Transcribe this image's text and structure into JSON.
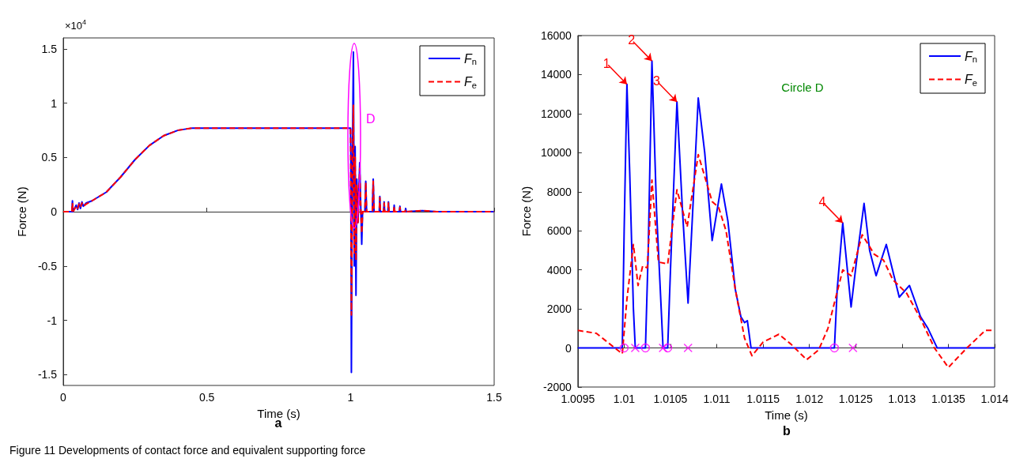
{
  "chart_data": [
    {
      "type": "line",
      "xlabel": "Time (s)",
      "ylabel": "Force (N)",
      "xlim": [
        0,
        1.5
      ],
      "xticks": [
        0,
        0.5,
        1,
        1.5
      ],
      "ylim": [
        -1.6,
        1.6
      ],
      "yticks": [
        -1.5,
        -1,
        -0.5,
        0,
        0.5,
        1,
        1.5
      ],
      "legend": "top right",
      "marker": "none",
      "annotations": [
        "×10$^{4}$",
        "D",
        "a",
        "Figure 11 Developments of contact force and equivalent supporting force"
      ],
      "series": [
        {
          "name": "F$_{n}$",
          "color": "#0000ff",
          "line_style": "solid",
          "x": [
            0,
            0.03,
            0.032,
            0.034,
            0.045,
            0.05,
            0.055,
            0.06,
            0.065,
            0.07,
            0.08,
            0.1,
            0.15,
            0.2,
            0.25,
            0.3,
            0.35,
            0.4,
            0.45,
            0.5,
            0.6,
            0.7,
            0.8,
            0.9,
            1.0,
            1.001,
            1.003,
            1.006,
            1.01,
            1.013,
            1.016,
            1.019,
            1.022,
            1.026,
            1.032,
            1.036,
            1.039,
            1.042,
            1.05,
            1.053,
            1.056,
            1.076,
            1.079,
            1.082,
            1.1,
            1.102,
            1.104,
            1.115,
            1.117,
            1.119,
            1.13,
            1.132,
            1.134,
            1.15,
            1.152,
            1.154,
            1.17,
            1.172,
            1.174,
            1.19,
            1.192,
            1.194,
            1.25,
            1.3,
            1.5
          ],
          "values": [
            0,
            0,
            0.1,
            0,
            0.06,
            0.02,
            0.08,
            0.03,
            0.09,
            0.05,
            0.08,
            0.1,
            0.18,
            0.32,
            0.48,
            0.61,
            0.7,
            0.75,
            0.77,
            0.77,
            0.77,
            0.77,
            0.77,
            0.77,
            0.77,
            0.5,
            -1.48,
            0.3,
            1.47,
            -0.5,
            0.6,
            -0.77,
            0.3,
            -0.1,
            0.45,
            0,
            -0.3,
            0,
            0,
            0.28,
            0,
            0,
            0.3,
            0,
            0,
            0.14,
            0,
            0,
            0.09,
            0,
            0,
            0.09,
            0,
            0,
            0.06,
            0,
            0,
            0.05,
            0,
            0,
            0.03,
            0,
            0.01,
            0,
            0
          ]
        },
        {
          "name": "F$_{e}$",
          "color": "#ff0000",
          "line_style": "dashed",
          "x": [
            0,
            0.03,
            0.032,
            0.034,
            0.045,
            0.05,
            0.055,
            0.06,
            0.065,
            0.07,
            0.08,
            0.1,
            0.15,
            0.2,
            0.25,
            0.3,
            0.35,
            0.4,
            0.45,
            0.5,
            0.6,
            0.7,
            0.8,
            0.9,
            1.0,
            1.001,
            1.003,
            1.006,
            1.01,
            1.013,
            1.016,
            1.019,
            1.022,
            1.026,
            1.032,
            1.036,
            1.039,
            1.042,
            1.05,
            1.053,
            1.056,
            1.076,
            1.079,
            1.082,
            1.1,
            1.102,
            1.104,
            1.115,
            1.117,
            1.119,
            1.13,
            1.132,
            1.134,
            1.15,
            1.152,
            1.154,
            1.17,
            1.172,
            1.174,
            1.19,
            1.192,
            1.194,
            1.25,
            1.3,
            1.5
          ],
          "values": [
            0,
            0,
            0.08,
            0,
            0.05,
            0.03,
            0.07,
            0.04,
            0.08,
            0.05,
            0.07,
            0.1,
            0.18,
            0.32,
            0.48,
            0.61,
            0.7,
            0.75,
            0.77,
            0.77,
            0.77,
            0.77,
            0.77,
            0.77,
            0.77,
            0.45,
            -0.95,
            0.2,
            0.98,
            -0.4,
            0.5,
            -0.45,
            0.25,
            -0.1,
            0.4,
            0,
            -0.2,
            0,
            0,
            0.27,
            0,
            0,
            0.28,
            0,
            0,
            0.13,
            0,
            0,
            0.08,
            0,
            0,
            0.08,
            0,
            0,
            0.05,
            0,
            0,
            0.04,
            0,
            0,
            0.02,
            0,
            0.01,
            0,
            0
          ]
        }
      ]
    },
    {
      "type": "line",
      "xlabel": "Time (s)",
      "ylabel": "Force (N)",
      "xlim": [
        1.0095,
        1.014
      ],
      "xticks": [
        1.0095,
        1.01,
        1.0105,
        1.011,
        1.0115,
        1.012,
        1.0125,
        1.013,
        1.0135,
        1.014
      ],
      "ylim": [
        -2000,
        16000
      ],
      "yticks": [
        -2000,
        0,
        2000,
        4000,
        6000,
        8000,
        10000,
        12000,
        14000,
        16000
      ],
      "legend": "top right",
      "marker": "none",
      "annotations": [
        "Circle D",
        "b",
        {
          "text": "1",
          "x": 1.01003,
          "y": 13500
        },
        {
          "text": "2",
          "x": 1.0103,
          "y": 14700
        },
        {
          "text": "3",
          "x": 1.01057,
          "y": 12600
        },
        {
          "text": "4",
          "x": 1.01236,
          "y": 6400
        }
      ],
      "series": [
        {
          "name": "F$_{n}$",
          "color": "#0000ff",
          "line_style": "solid",
          "x": [
            1.0095,
            1.00998,
            1.01,
            1.01003,
            1.01006,
            1.0101,
            1.01012,
            1.01023,
            1.01026,
            1.0103,
            1.01035,
            1.01042,
            1.01047,
            1.0105,
            1.01057,
            1.01063,
            1.01069,
            1.01074,
            1.0108,
            1.01087,
            1.01095,
            1.01105,
            1.01112,
            1.0112,
            1.01126,
            1.0113,
            1.01133,
            1.01137,
            1.01227,
            1.0123,
            1.01236,
            1.01241,
            1.01245,
            1.01251,
            1.01259,
            1.01265,
            1.01272,
            1.01283,
            1.01297,
            1.01308,
            1.0132,
            1.01328,
            1.01338,
            1.014
          ],
          "values": [
            0,
            0,
            6000,
            13500,
            9000,
            2000,
            0,
            0,
            5000,
            14700,
            7000,
            0,
            0,
            4000,
            12600,
            7000,
            2300,
            7000,
            12800,
            10000,
            5500,
            8400,
            6500,
            3000,
            1600,
            1300,
            1400,
            0,
            0,
            3000,
            6400,
            4000,
            2100,
            4500,
            7400,
            5000,
            3700,
            5300,
            2600,
            3200,
            1600,
            1000,
            0,
            0
          ]
        },
        {
          "name": "F$_{e}$",
          "color": "#ff0000",
          "line_style": "dashed",
          "x": [
            1.0095,
            1.0097,
            1.0099,
            1.00998,
            1.01003,
            1.0101,
            1.01015,
            1.0102,
            1.01025,
            1.0103,
            1.01037,
            1.01047,
            1.01057,
            1.01068,
            1.0108,
            1.01095,
            1.01102,
            1.0111,
            1.0112,
            1.0113,
            1.01138,
            1.0115,
            1.01167,
            1.0118,
            1.01197,
            1.0121,
            1.0122,
            1.01228,
            1.01236,
            1.01245,
            1.01257,
            1.0127,
            1.0128,
            1.0129,
            1.01305,
            1.0132,
            1.01335,
            1.0135,
            1.0137,
            1.0139,
            1.014
          ],
          "values": [
            900,
            750,
            0,
            -300,
            2500,
            5300,
            3200,
            4200,
            4100,
            8600,
            4400,
            4300,
            8100,
            6200,
            9900,
            7500,
            7200,
            6000,
            3000,
            500,
            -400,
            300,
            700,
            200,
            -600,
            -100,
            1000,
            2500,
            4000,
            3700,
            5800,
            4800,
            4500,
            3500,
            2800,
            1500,
            0,
            -1000,
            0,
            900,
            900
          ]
        },
        {
          "type": "scatter",
          "marker": "circle",
          "color": "#ff00ff",
          "x": [
            1.01,
            1.01023,
            1.01047,
            1.01227
          ],
          "values": [
            0,
            0,
            0,
            0
          ]
        },
        {
          "type": "scatter",
          "marker": "cross",
          "color": "#ff00ff",
          "x": [
            1.01012,
            1.01042,
            1.01069,
            1.01247
          ],
          "values": [
            0,
            0,
            0,
            0
          ]
        }
      ]
    }
  ]
}
